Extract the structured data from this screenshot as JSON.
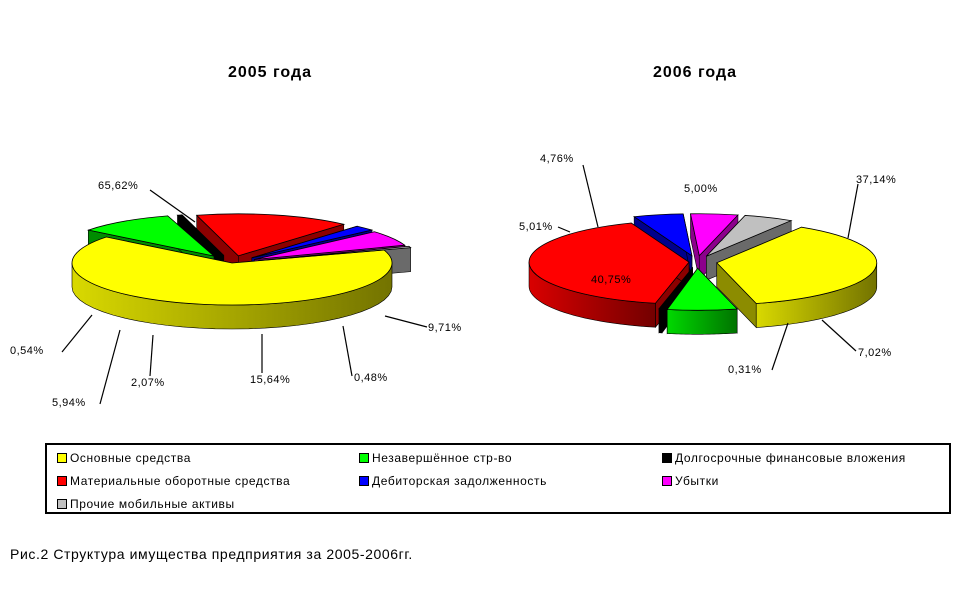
{
  "chart_data": [
    {
      "type": "pie",
      "title": "2005 года",
      "series": [
        {
          "name": "Основные средства",
          "value": 65.62,
          "label": "65,62%",
          "color": "#FFFF00"
        },
        {
          "name": "Незавершённое стр-во",
          "value": 9.71,
          "label": "9,71%",
          "color": "#00FF00"
        },
        {
          "name": "Долгосрочные финансовые вложения",
          "value": 0.48,
          "label": "0,48%",
          "color": "#000000"
        },
        {
          "name": "Материальные оборотные средства",
          "value": 15.64,
          "label": "15,64%",
          "color": "#FF0000"
        },
        {
          "name": "Дебиторская задолженность",
          "value": 2.07,
          "label": "2,07%",
          "color": "#0000FF"
        },
        {
          "name": "Убытки",
          "value": 5.94,
          "label": "5,94%",
          "color": "#FF00FF"
        },
        {
          "name": "Прочие мобильные активы",
          "value": 0.54,
          "label": "0,54%",
          "color": "#C0C0C0"
        }
      ]
    },
    {
      "type": "pie",
      "title": "2006 года",
      "series": [
        {
          "name": "Основные средства",
          "value": 37.14,
          "label": "37,14%",
          "color": "#FFFF00"
        },
        {
          "name": "Незавершённое стр-во",
          "value": 7.02,
          "label": "7,02%",
          "color": "#00FF00"
        },
        {
          "name": "Долгосрочные финансовые вложения",
          "value": 0.31,
          "label": "0,31%",
          "color": "#000000"
        },
        {
          "name": "Материальные оборотные средства",
          "value": 40.75,
          "label": "40,75%",
          "color": "#FF0000"
        },
        {
          "name": "Дебиторская задолженность",
          "value": 5.01,
          "label": "5,01%",
          "color": "#0000FF"
        },
        {
          "name": "Убытки",
          "value": 4.76,
          "label": "4,76%",
          "color": "#FF00FF"
        },
        {
          "name": "Прочие мобильные активы",
          "value": 5.0,
          "label": "5,00%",
          "color": "#C0C0C0"
        }
      ]
    }
  ],
  "legend": [
    {
      "label": "Основные средства",
      "color": "#FFFF00"
    },
    {
      "label": "Незавершённое стр-во",
      "color": "#00FF00"
    },
    {
      "label": "Долгосрочные финансовые вложения",
      "color": "#000000"
    },
    {
      "label": "Материальные оборотные средства",
      "color": "#FF0000"
    },
    {
      "label": "Дебиторская задолженность",
      "color": "#0000FF"
    },
    {
      "label": "Убытки",
      "color": "#FF00FF"
    },
    {
      "label": "Прочие мобильные активы",
      "color": "#C0C0C0"
    }
  ],
  "caption": "Рис.2 Структура имущества предприятия за 2005-2006гг."
}
